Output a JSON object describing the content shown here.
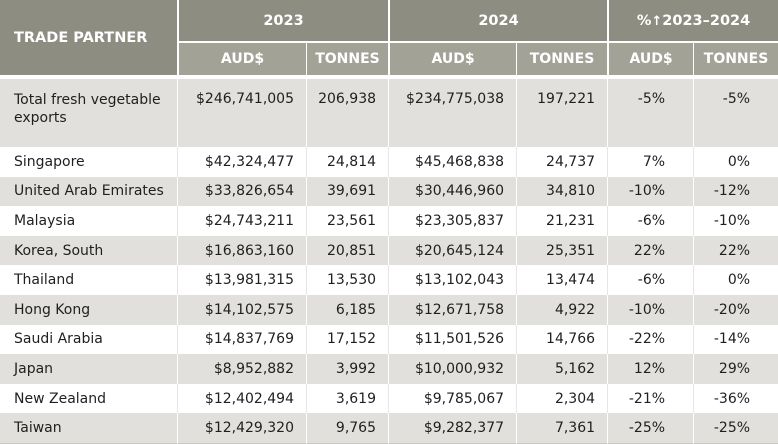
{
  "header": {
    "partner": "TRADE PARTNER",
    "year1": "2023",
    "year2": "2024",
    "change_prefix": "%",
    "change_arrow": "↑",
    "change_range": "2023–2024",
    "aud": "AUD$",
    "tonnes": "TONNES"
  },
  "rows": [
    {
      "partner": "Total fresh vegetable exports",
      "aud2023": "$246,741,005",
      "t2023": "206,938",
      "aud2024": "$234,775,038",
      "t2024": "197,221",
      "pct_aud": "-5%",
      "pct_t": "-5%"
    },
    {
      "partner": "Singapore",
      "aud2023": "$42,324,477",
      "t2023": "24,814",
      "aud2024": "$45,468,838",
      "t2024": "24,737",
      "pct_aud": "7%",
      "pct_t": "0%"
    },
    {
      "partner": "United Arab Emirates",
      "aud2023": "$33,826,654",
      "t2023": "39,691",
      "aud2024": "$30,446,960",
      "t2024": "34,810",
      "pct_aud": "-10%",
      "pct_t": "-12%"
    },
    {
      "partner": "Malaysia",
      "aud2023": "$24,743,211",
      "t2023": "23,561",
      "aud2024": "$23,305,837",
      "t2024": "21,231",
      "pct_aud": "-6%",
      "pct_t": "-10%"
    },
    {
      "partner": "Korea, South",
      "aud2023": "$16,863,160",
      "t2023": "20,851",
      "aud2024": "$20,645,124",
      "t2024": "25,351",
      "pct_aud": "22%",
      "pct_t": "22%"
    },
    {
      "partner": "Thailand",
      "aud2023": "$13,981,315",
      "t2023": "13,530",
      "aud2024": "$13,102,043",
      "t2024": "13,474",
      "pct_aud": "-6%",
      "pct_t": "0%"
    },
    {
      "partner": "Hong Kong",
      "aud2023": "$14,102,575",
      "t2023": "6,185",
      "aud2024": "$12,671,758",
      "t2024": "4,922",
      "pct_aud": "-10%",
      "pct_t": "-20%"
    },
    {
      "partner": "Saudi Arabia",
      "aud2023": "$14,837,769",
      "t2023": "17,152",
      "aud2024": "$11,501,526",
      "t2024": "14,766",
      "pct_aud": "-22%",
      "pct_t": "-14%"
    },
    {
      "partner": "Japan",
      "aud2023": "$8,952,882",
      "t2023": "3,992",
      "aud2024": "$10,000,932",
      "t2024": "5,162",
      "pct_aud": "12%",
      "pct_t": "29%"
    },
    {
      "partner": "New Zealand",
      "aud2023": "$12,402,494",
      "t2023": "3,619",
      "aud2024": "$9,785,067",
      "t2024": "2,304",
      "pct_aud": "-21%",
      "pct_t": "-36%"
    },
    {
      "partner": "Taiwan",
      "aud2023": "$12,429,320",
      "t2023": "9,765",
      "aud2024": "$9,282,377",
      "t2024": "7,361",
      "pct_aud": "-25%",
      "pct_t": "-25%"
    }
  ],
  "colors": {
    "header_dark": "#8e8d82",
    "header_light": "#a3a297",
    "row_shaded": "#e1e0dc",
    "row_plain": "#ffffff"
  }
}
